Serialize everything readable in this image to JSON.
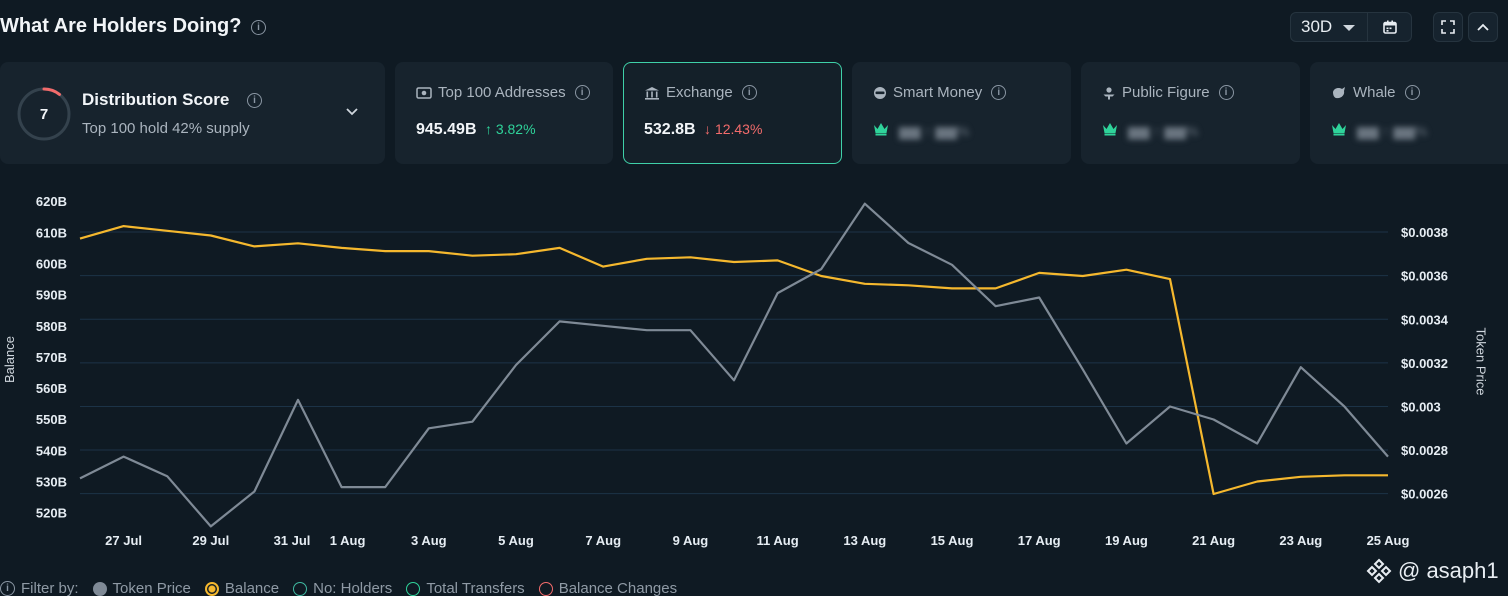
{
  "header": {
    "title": "What Are Holders Doing?",
    "period": "30D"
  },
  "cards": {
    "distribution": {
      "title": "Distribution Score",
      "score": "7",
      "subtitle": "Top 100 hold 42% supply"
    },
    "top100": {
      "label": "Top 100 Addresses",
      "value": "945.49B",
      "change": "3.82%"
    },
    "exchange": {
      "label": "Exchange",
      "value": "532.8B",
      "change": "12.43%"
    },
    "smart_money": {
      "label": "Smart Money"
    },
    "public_figure": {
      "label": "Public Figure"
    },
    "whale": {
      "label": "Whale"
    }
  },
  "colors": {
    "balance": "#f5b82e",
    "token_price": "#7f8a96",
    "grid": "#1c3347",
    "up": "#2fd39a",
    "down": "#f26b6b",
    "accent": "#3fd0a8"
  },
  "legend": {
    "filter_label": "Filter by:",
    "items": [
      {
        "label": "Token Price",
        "style": "filled",
        "color": "#7f8a96"
      },
      {
        "label": "Balance",
        "style": "selected",
        "color": "#f5b82e"
      },
      {
        "label": "No: Holders",
        "style": "outline",
        "color": "#3fb8a0"
      },
      {
        "label": "Total Transfers",
        "style": "outline",
        "color": "#2fd39a"
      },
      {
        "label": "Balance Changes",
        "style": "outline",
        "color": "#f26b6b"
      }
    ]
  },
  "watermark": "@ asaph1",
  "chart_data": {
    "type": "line",
    "ylabel": "Balance",
    "y2label": "Token Price",
    "grid": true,
    "ylim": [
      517,
      622
    ],
    "y2lim": [
      0.00247,
      0.00397
    ],
    "yticks": [
      "620B",
      "610B",
      "600B",
      "590B",
      "580B",
      "570B",
      "560B",
      "550B",
      "540B",
      "530B",
      "520B"
    ],
    "ytick_values": [
      620,
      610,
      600,
      590,
      580,
      570,
      560,
      550,
      540,
      530,
      520
    ],
    "y2ticks": [
      "$0.0038",
      "$0.0036",
      "$0.0034",
      "$0.0032",
      "$0.003",
      "$0.0028",
      "$0.0026"
    ],
    "y2tick_values": [
      0.0038,
      0.0036,
      0.0034,
      0.0032,
      0.003,
      0.0028,
      0.0026
    ],
    "xtick_labels": [
      "27 Jul",
      "29 Jul",
      "31 Jul",
      "1 Aug",
      "3 Aug",
      "5 Aug",
      "7 Aug",
      "9 Aug",
      "11 Aug",
      "13 Aug",
      "15 Aug",
      "17 Aug",
      "19 Aug",
      "21 Aug",
      "23 Aug",
      "25 Aug"
    ],
    "xtick_index": [
      1,
      3,
      5,
      6,
      8,
      10,
      12,
      14,
      16,
      18,
      20,
      22,
      24,
      26,
      28,
      30
    ],
    "x": [
      "26 Jul",
      "27 Jul",
      "28 Jul",
      "29 Jul",
      "30 Jul",
      "31 Jul",
      "1 Aug",
      "2 Aug",
      "3 Aug",
      "4 Aug",
      "5 Aug",
      "6 Aug",
      "7 Aug",
      "8 Aug",
      "9 Aug",
      "10 Aug",
      "11 Aug",
      "12 Aug",
      "13 Aug",
      "14 Aug",
      "15 Aug",
      "16 Aug",
      "17 Aug",
      "18 Aug",
      "19 Aug",
      "20 Aug",
      "21 Aug",
      "22 Aug",
      "23 Aug",
      "24 Aug",
      "25 Aug"
    ],
    "series": [
      {
        "name": "Balance",
        "axis": "left",
        "values": [
          608,
          612,
          610.5,
          609,
          605.5,
          606.5,
          605,
          604,
          604,
          602.5,
          603,
          605,
          599,
          601.5,
          602,
          600.5,
          601,
          596,
          593.5,
          593,
          592,
          592,
          597,
          596,
          598,
          595,
          526,
          530,
          531.5,
          532,
          532
        ]
      },
      {
        "name": "Token Price",
        "axis": "right",
        "values": [
          0.00267,
          0.00277,
          0.00268,
          0.00245,
          0.00261,
          0.00303,
          0.00263,
          0.00263,
          0.0029,
          0.00293,
          0.00319,
          0.00339,
          0.00337,
          0.00335,
          0.00335,
          0.00312,
          0.00352,
          0.00363,
          0.00393,
          0.00375,
          0.00365,
          0.00346,
          0.0035,
          0.00317,
          0.00283,
          0.003,
          0.00294,
          0.00283,
          0.00318,
          0.003,
          0.00277
        ]
      }
    ]
  }
}
